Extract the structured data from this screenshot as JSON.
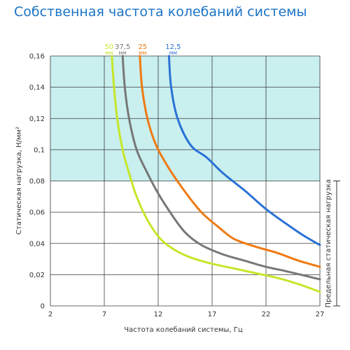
{
  "chart_data": {
    "type": "line",
    "title": "Собственная частота колебаний системы",
    "xlabel": "Частота колебаний системы, Гц",
    "ylabel": "Статическая нагрузка, Н/мм²",
    "xlim": [
      2,
      27
    ],
    "ylim": [
      0,
      0.16
    ],
    "x_ticks": [
      2,
      7,
      12,
      17,
      22,
      27
    ],
    "x_tick_labels": [
      "2",
      "7",
      "12",
      "17",
      "22",
      "27"
    ],
    "y_ticks": [
      0,
      0.02,
      0.04,
      0.06,
      0.08,
      0.1,
      0.12,
      0.14,
      0.16
    ],
    "y_tick_labels": [
      "0",
      "0,02",
      "0,04",
      "0,06",
      "0,08",
      "0,1",
      "0,12",
      "0,14",
      "0,16"
    ],
    "grid": true,
    "shaded_region": {
      "y_from": 0.08,
      "y_to": 0.16,
      "color": "#c9efef"
    },
    "bracket": {
      "y_from": 0,
      "y_to": 0.08,
      "label": "Предельная статическая нагрузка"
    },
    "legend_position": "top",
    "series": [
      {
        "name": "50 мм",
        "label_value": "50",
        "label_unit": "мм",
        "color": "#c6e629",
        "points": [
          [
            7.7,
            0.16
          ],
          [
            7.9,
            0.14
          ],
          [
            8.2,
            0.12
          ],
          [
            8.7,
            0.1
          ],
          [
            9.3,
            0.085
          ],
          [
            10,
            0.07
          ],
          [
            11,
            0.055
          ],
          [
            12.2,
            0.043
          ],
          [
            13.5,
            0.036
          ],
          [
            15,
            0.031
          ],
          [
            17,
            0.027
          ],
          [
            19,
            0.024
          ],
          [
            21,
            0.021
          ],
          [
            23,
            0.018
          ],
          [
            25,
            0.014
          ],
          [
            27,
            0.009
          ]
        ]
      },
      {
        "name": "37,5 мм",
        "label_value": "37,5",
        "label_unit": "мм",
        "color": "#777777",
        "points": [
          [
            8.7,
            0.16
          ],
          [
            8.9,
            0.14
          ],
          [
            9.3,
            0.12
          ],
          [
            10,
            0.1
          ],
          [
            11,
            0.085
          ],
          [
            12,
            0.072
          ],
          [
            13.3,
            0.058
          ],
          [
            14.5,
            0.047
          ],
          [
            16,
            0.039
          ],
          [
            18,
            0.033
          ],
          [
            20,
            0.029
          ],
          [
            22,
            0.025
          ],
          [
            24,
            0.022
          ],
          [
            27,
            0.017
          ]
        ]
      },
      {
        "name": "25 мм",
        "label_value": "25",
        "label_unit": "мм",
        "color": "#ee7a12",
        "points": [
          [
            10.3,
            0.16
          ],
          [
            10.5,
            0.14
          ],
          [
            11,
            0.12
          ],
          [
            11.8,
            0.103
          ],
          [
            13,
            0.088
          ],
          [
            14.5,
            0.073
          ],
          [
            16,
            0.06
          ],
          [
            17.5,
            0.051
          ],
          [
            19,
            0.043
          ],
          [
            21,
            0.038
          ],
          [
            23,
            0.034
          ],
          [
            25,
            0.029
          ],
          [
            27,
            0.025
          ]
        ]
      },
      {
        "name": "12,5 мм",
        "label_value": "12,5",
        "label_unit": "мм",
        "color": "#2a72d6",
        "points": [
          [
            13,
            0.16
          ],
          [
            13.2,
            0.14
          ],
          [
            13.8,
            0.12
          ],
          [
            15,
            0.103
          ],
          [
            16.5,
            0.095
          ],
          [
            18,
            0.085
          ],
          [
            20,
            0.074
          ],
          [
            22,
            0.062
          ],
          [
            24,
            0.052
          ],
          [
            25.5,
            0.045
          ],
          [
            27,
            0.039
          ]
        ]
      }
    ]
  }
}
